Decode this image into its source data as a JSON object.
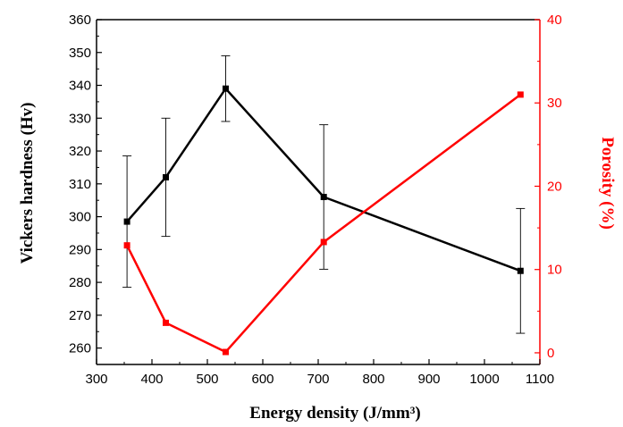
{
  "chart_data": {
    "type": "line",
    "xlabel": "Energy density (J/mm³)",
    "ylabel": "Vickers hardness (Hv)",
    "y2label": "Porosity (%)",
    "xlim": [
      300,
      1100
    ],
    "ylim": [
      255,
      360
    ],
    "y2lim": [
      -1.4,
      40
    ],
    "x_ticks": [
      300,
      400,
      500,
      600,
      700,
      800,
      900,
      1000,
      1100
    ],
    "y_ticks": [
      260,
      270,
      280,
      290,
      300,
      310,
      320,
      330,
      340,
      350,
      360
    ],
    "y2_ticks": [
      0,
      10,
      20,
      30,
      40
    ],
    "grid": false,
    "series": [
      {
        "axis": "left",
        "color": "#000000",
        "marker": "square",
        "x": [
          355,
          425,
          533,
          710,
          1065
        ],
        "y": [
          298.5,
          312,
          339,
          306,
          283.5
        ],
        "err": [
          20,
          18,
          10,
          22,
          19
        ]
      },
      {
        "axis": "right",
        "color": "#ff0000",
        "marker": "square",
        "x": [
          355,
          425,
          533,
          710,
          1065
        ],
        "y": [
          12.9,
          3.6,
          0.1,
          13.3,
          31.0
        ]
      }
    ]
  }
}
